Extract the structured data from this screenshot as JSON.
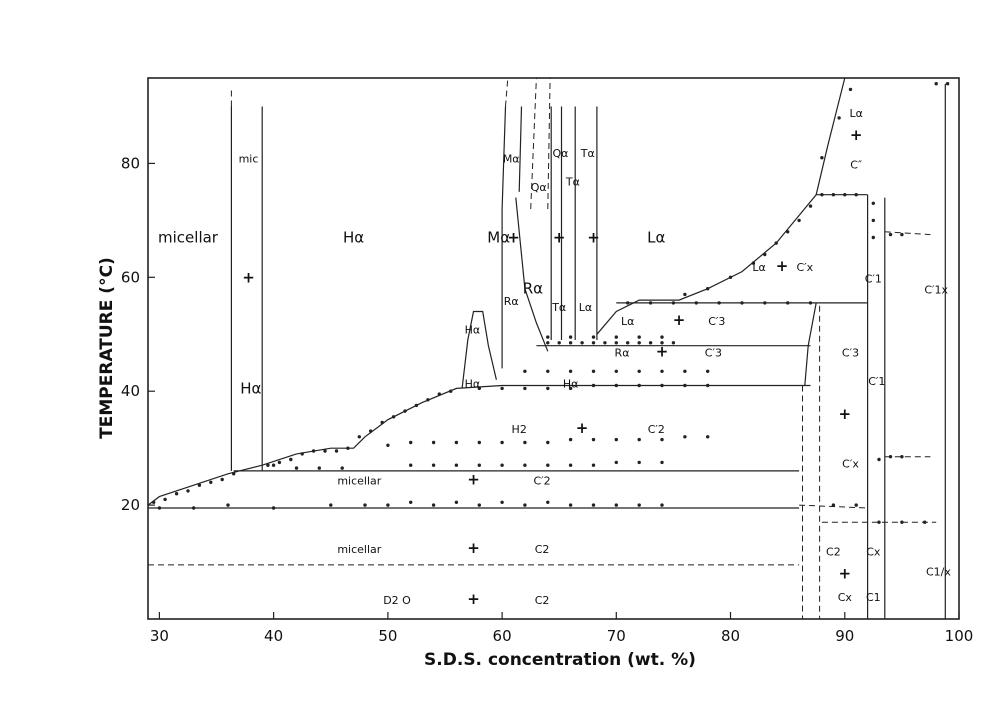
{
  "chart_data": {
    "type": "scatter",
    "title": "",
    "xlabel": "S.D.S. concentration  (wt. %)",
    "ylabel": "TEMPERATURE (°C)",
    "xlim": [
      29,
      100
    ],
    "ylim": [
      0,
      95
    ],
    "x_ticks": [
      "30",
      "40",
      "50",
      "60",
      "70",
      "80",
      "90",
      "100"
    ],
    "y_ticks": [
      "20",
      "40",
      "60",
      "80"
    ],
    "grid": false,
    "legend": "none",
    "colors": {
      "ink": "#222222",
      "background": "#ffffff"
    },
    "region_labels": [
      {
        "text": "micellar",
        "x": 32.5,
        "y": 67,
        "size": "large"
      },
      {
        "text": "mic",
        "x": 37.8,
        "y": 81,
        "size": "small"
      },
      {
        "text": "Hα",
        "x": 38.0,
        "y": 40.5,
        "size": "large"
      },
      {
        "text": "Hα",
        "x": 47.0,
        "y": 67,
        "size": "large"
      },
      {
        "text": "Mα",
        "x": 59.7,
        "y": 67,
        "size": "large"
      },
      {
        "text": "Mα",
        "x": 60.8,
        "y": 81,
        "size": "small"
      },
      {
        "text": "Rα",
        "x": 62.7,
        "y": 58,
        "size": "large"
      },
      {
        "text": "Rα",
        "x": 60.8,
        "y": 56,
        "size": "small"
      },
      {
        "text": "Qα",
        "x": 63.2,
        "y": 76,
        "size": "small"
      },
      {
        "text": "Qα",
        "x": 65.1,
        "y": 82,
        "size": "small"
      },
      {
        "text": "Tα",
        "x": 67.5,
        "y": 82,
        "size": "small"
      },
      {
        "text": "Tα",
        "x": 66.2,
        "y": 77,
        "size": "small"
      },
      {
        "text": "Tα",
        "x": 65.0,
        "y": 55,
        "size": "small"
      },
      {
        "text": "Lα",
        "x": 67.3,
        "y": 55,
        "size": "small"
      },
      {
        "text": "Lα",
        "x": 73.5,
        "y": 67,
        "size": "large"
      },
      {
        "text": "Lα",
        "x": 91.0,
        "y": 89,
        "size": "small"
      },
      {
        "text": "C″",
        "x": 91.0,
        "y": 80,
        "size": "small"
      },
      {
        "text": "Lα",
        "x": 82.5,
        "y": 62,
        "size": "small"
      },
      {
        "text": "C′x",
        "x": 86.5,
        "y": 62,
        "size": "small"
      },
      {
        "text": "Lα",
        "x": 71.0,
        "y": 52.5,
        "size": "small"
      },
      {
        "text": "C′3",
        "x": 78.8,
        "y": 52.5,
        "size": "small"
      },
      {
        "text": "Hα",
        "x": 57.4,
        "y": 51,
        "size": "small"
      },
      {
        "text": "Hα",
        "x": 57.4,
        "y": 41.5,
        "size": "small"
      },
      {
        "text": "Rα",
        "x": 70.5,
        "y": 47,
        "size": "small"
      },
      {
        "text": "C′3",
        "x": 78.5,
        "y": 47,
        "size": "small"
      },
      {
        "text": "Hα",
        "x": 66.0,
        "y": 41.5,
        "size": "small"
      },
      {
        "text": "H2",
        "x": 61.5,
        "y": 33.5,
        "size": "small"
      },
      {
        "text": "C′2",
        "x": 73.5,
        "y": 33.5,
        "size": "small"
      },
      {
        "text": "micellar",
        "x": 47.5,
        "y": 24.5,
        "size": "small"
      },
      {
        "text": "C′2",
        "x": 63.5,
        "y": 24.5,
        "size": "small"
      },
      {
        "text": "micellar",
        "x": 47.5,
        "y": 12.5,
        "size": "small"
      },
      {
        "text": "C2",
        "x": 63.5,
        "y": 12.5,
        "size": "small"
      },
      {
        "text": "D2 O",
        "x": 50.8,
        "y": 3.5,
        "size": "small"
      },
      {
        "text": "C2",
        "x": 63.5,
        "y": 3.5,
        "size": "small"
      },
      {
        "text": "C′3",
        "x": 90.5,
        "y": 47,
        "size": "small"
      },
      {
        "text": "C′x",
        "x": 90.5,
        "y": 27.5,
        "size": "small"
      },
      {
        "text": "C′1",
        "x": 92.8,
        "y": 42,
        "size": "small"
      },
      {
        "text": "C′1",
        "x": 92.5,
        "y": 60,
        "size": "small"
      },
      {
        "text": "C′1x",
        "x": 98.0,
        "y": 58,
        "size": "small"
      },
      {
        "text": "C2",
        "x": 89.0,
        "y": 12,
        "size": "small"
      },
      {
        "text": "Cx",
        "x": 90.0,
        "y": 4,
        "size": "small"
      },
      {
        "text": "C1",
        "x": 92.5,
        "y": 4,
        "size": "small"
      },
      {
        "text": "Cx",
        "x": 92.5,
        "y": 12,
        "size": "small"
      },
      {
        "text": "C1/x",
        "x": 98.2,
        "y": 8.5,
        "size": "small"
      }
    ],
    "plus_marks": [
      {
        "x": 37.8,
        "y": 60
      },
      {
        "x": 61.0,
        "y": 67
      },
      {
        "x": 65.0,
        "y": 67
      },
      {
        "x": 68.0,
        "y": 67
      },
      {
        "x": 91.0,
        "y": 85
      },
      {
        "x": 84.5,
        "y": 62
      },
      {
        "x": 75.5,
        "y": 52.5
      },
      {
        "x": 74.0,
        "y": 47
      },
      {
        "x": 67.0,
        "y": 33.5
      },
      {
        "x": 57.5,
        "y": 24.5
      },
      {
        "x": 57.5,
        "y": 12.5
      },
      {
        "x": 57.5,
        "y": 3.5
      },
      {
        "x": 90.0,
        "y": 36
      },
      {
        "x": 90.0,
        "y": 8
      }
    ],
    "solid_boundaries": [
      {
        "name": "micellar-Hα boundary",
        "points": [
          [
            29,
            20
          ],
          [
            30,
            21.5
          ],
          [
            33,
            23.5
          ],
          [
            36,
            25.5
          ],
          [
            39,
            27
          ],
          [
            42,
            29
          ],
          [
            45,
            30
          ],
          [
            47,
            30
          ],
          [
            48,
            32
          ],
          [
            50,
            35
          ],
          [
            53,
            38
          ],
          [
            56,
            40.5
          ],
          [
            60,
            41
          ],
          [
            87,
            41
          ]
        ]
      },
      {
        "name": "mic left",
        "points": [
          [
            36.3,
            26
          ],
          [
            36.3,
            90
          ]
        ]
      },
      {
        "name": "mic right",
        "points": [
          [
            39.0,
            26
          ],
          [
            39.0,
            90
          ]
        ]
      },
      {
        "name": "Hα-Mα bump",
        "points": [
          [
            56.5,
            40.5
          ],
          [
            57.0,
            49
          ],
          [
            57.5,
            54
          ],
          [
            58.3,
            54
          ],
          [
            58.8,
            48
          ],
          [
            59.5,
            42
          ]
        ]
      },
      {
        "name": "Mα left",
        "points": [
          [
            60.0,
            44
          ],
          [
            60.0,
            72
          ],
          [
            60.3,
            90
          ]
        ]
      },
      {
        "name": "Mα right",
        "points": [
          [
            61.5,
            75
          ],
          [
            61.7,
            90
          ]
        ]
      },
      {
        "name": "Rα boundary",
        "points": [
          [
            61.2,
            74
          ],
          [
            62.0,
            58
          ],
          [
            63.0,
            52
          ],
          [
            64.0,
            47
          ]
        ]
      },
      {
        "name": "Qα left",
        "points": [
          [
            64.3,
            49
          ],
          [
            64.3,
            90
          ]
        ]
      },
      {
        "name": "Qα right",
        "points": [
          [
            65.2,
            49
          ],
          [
            65.2,
            90
          ]
        ]
      },
      {
        "name": "Tα left",
        "points": [
          [
            66.4,
            49
          ],
          [
            66.4,
            90
          ]
        ]
      },
      {
        "name": "Tα right",
        "points": [
          [
            68.3,
            49
          ],
          [
            68.3,
            90
          ]
        ]
      },
      {
        "name": "Lα-Rα lower",
        "points": [
          [
            63.0,
            48
          ],
          [
            87,
            48
          ]
        ]
      },
      {
        "name": "Lα-C′3 line",
        "points": [
          [
            68.3,
            50
          ],
          [
            70.0,
            54
          ],
          [
            72.0,
            56
          ],
          [
            75.5,
            56
          ],
          [
            78.0,
            58
          ],
          [
            81.0,
            61
          ],
          [
            84.0,
            66
          ],
          [
            87.5,
            74.5
          ],
          [
            92,
            74.5
          ]
        ]
      },
      {
        "name": "Lα 55 line",
        "points": [
          [
            70.0,
            55.5
          ],
          [
            92,
            55.5
          ]
        ]
      },
      {
        "name": "upper Lα",
        "points": [
          [
            87.5,
            74.5
          ],
          [
            88.5,
            83
          ],
          [
            90.0,
            95
          ]
        ]
      },
      {
        "name": "C′x-C′3 right",
        "points": [
          [
            87.5,
            55.5
          ],
          [
            86.8,
            48
          ],
          [
            86.5,
            41
          ]
        ]
      },
      {
        "name": "low Hα line",
        "points": [
          [
            36.5,
            26
          ],
          [
            48,
            26
          ],
          [
            86,
            26
          ]
        ]
      },
      {
        "name": "20 line",
        "points": [
          [
            29,
            19.5
          ],
          [
            86,
            19.5
          ]
        ]
      },
      {
        "name": "C2-C1 divider",
        "points": [
          [
            92.0,
            74.5
          ],
          [
            92.0,
            0
          ]
        ]
      },
      {
        "name": "C1 right",
        "points": [
          [
            93.5,
            74
          ],
          [
            93.5,
            0
          ]
        ]
      },
      {
        "name": "upper right",
        "points": [
          [
            98.8,
            94
          ],
          [
            98.8,
            0
          ]
        ]
      }
    ],
    "dashed_boundaries": [
      {
        "name": "mic left dash",
        "points": [
          [
            36.3,
            90
          ],
          [
            36.3,
            93
          ]
        ]
      },
      {
        "name": "Mα dash",
        "points": [
          [
            60.3,
            90
          ],
          [
            60.5,
            95
          ]
        ]
      },
      {
        "name": "Rα dash",
        "points": [
          [
            62.5,
            72
          ],
          [
            63.0,
            95
          ]
        ]
      },
      {
        "name": "Qα dash",
        "points": [
          [
            64.0,
            72
          ],
          [
            64.2,
            95
          ]
        ]
      },
      {
        "name": "D2O line",
        "points": [
          [
            29,
            9.5
          ],
          [
            86,
            9.5
          ]
        ]
      },
      {
        "name": "C′x-C2 bottom",
        "points": [
          [
            86.3,
            41
          ],
          [
            86.3,
            0
          ]
        ]
      },
      {
        "name": "C2 left",
        "points": [
          [
            87.8,
            55
          ],
          [
            87.8,
            0
          ]
        ]
      },
      {
        "name": "C′1x line",
        "points": [
          [
            93.5,
            68
          ],
          [
            97.5,
            67.5
          ]
        ]
      },
      {
        "name": "C′x 28",
        "points": [
          [
            93.5,
            28.5
          ],
          [
            97.5,
            28.5
          ]
        ]
      },
      {
        "name": "C′x 20",
        "points": [
          [
            86,
            20
          ],
          [
            92,
            19.5
          ]
        ]
      },
      {
        "name": "C1 17",
        "points": [
          [
            88,
            17
          ],
          [
            98,
            17
          ]
        ]
      }
    ],
    "data_points": [
      [
        29.5,
        20.5
      ],
      [
        30.5,
        21
      ],
      [
        31.5,
        22
      ],
      [
        32.5,
        22.5
      ],
      [
        33.5,
        23.5
      ],
      [
        34.5,
        24
      ],
      [
        35.5,
        24.5
      ],
      [
        36.5,
        25.5
      ],
      [
        39.5,
        27
      ],
      [
        40.5,
        27.5
      ],
      [
        41.5,
        28
      ],
      [
        42.5,
        29
      ],
      [
        43.5,
        29.5
      ],
      [
        44.5,
        29.5
      ],
      [
        45.5,
        29.5
      ],
      [
        46.5,
        30
      ],
      [
        47.5,
        32
      ],
      [
        48.5,
        33
      ],
      [
        49.5,
        34.5
      ],
      [
        50.5,
        35.5
      ],
      [
        51.5,
        36.5
      ],
      [
        52.5,
        37.5
      ],
      [
        53.5,
        38.5
      ],
      [
        54.5,
        39.5
      ],
      [
        55.5,
        40
      ],
      [
        58,
        40.5
      ],
      [
        60,
        40.5
      ],
      [
        62,
        40.5
      ],
      [
        64,
        40.5
      ],
      [
        66,
        40.5
      ],
      [
        68,
        41
      ],
      [
        70,
        41
      ],
      [
        72,
        41
      ],
      [
        74,
        41
      ],
      [
        76,
        41
      ],
      [
        78,
        41
      ],
      [
        62,
        43.5
      ],
      [
        64,
        43.5
      ],
      [
        66,
        43.5
      ],
      [
        68,
        43.5
      ],
      [
        70,
        43.5
      ],
      [
        72,
        43.5
      ],
      [
        74,
        43.5
      ],
      [
        76,
        43.5
      ],
      [
        78,
        43.5
      ],
      [
        64,
        48.5
      ],
      [
        65,
        48.5
      ],
      [
        66,
        48.5
      ],
      [
        67,
        48.5
      ],
      [
        68,
        48.5
      ],
      [
        69,
        48.5
      ],
      [
        70,
        48.5
      ],
      [
        71,
        48.5
      ],
      [
        72,
        48.5
      ],
      [
        73,
        48.5
      ],
      [
        74,
        48.5
      ],
      [
        75,
        48.5
      ],
      [
        64,
        49.5
      ],
      [
        66,
        49.5
      ],
      [
        68,
        49.5
      ],
      [
        70,
        49.5
      ],
      [
        72,
        49.5
      ],
      [
        74,
        49.5
      ],
      [
        71,
        55.5
      ],
      [
        73,
        55.5
      ],
      [
        75,
        55.5
      ],
      [
        77,
        55.5
      ],
      [
        79,
        55.5
      ],
      [
        81,
        55.5
      ],
      [
        83,
        55.5
      ],
      [
        85,
        55.5
      ],
      [
        87,
        55.5
      ],
      [
        76,
        57
      ],
      [
        78,
        58
      ],
      [
        80,
        60
      ],
      [
        82,
        62.5
      ],
      [
        83,
        64
      ],
      [
        84,
        66
      ],
      [
        85,
        68
      ],
      [
        86,
        70
      ],
      [
        87,
        72.5
      ],
      [
        88,
        74.5
      ],
      [
        89,
        74.5
      ],
      [
        90,
        74.5
      ],
      [
        91,
        74.5
      ],
      [
        88,
        81
      ],
      [
        89.5,
        88
      ],
      [
        90.5,
        93
      ],
      [
        50,
        30.5
      ],
      [
        52,
        31
      ],
      [
        54,
        31
      ],
      [
        56,
        31
      ],
      [
        58,
        31
      ],
      [
        60,
        31
      ],
      [
        62,
        31
      ],
      [
        64,
        31
      ],
      [
        66,
        31.5
      ],
      [
        68,
        31.5
      ],
      [
        70,
        31.5
      ],
      [
        72,
        31.5
      ],
      [
        74,
        31.5
      ],
      [
        76,
        32
      ],
      [
        78,
        32
      ],
      [
        40,
        27
      ],
      [
        42,
        26.5
      ],
      [
        44,
        26.5
      ],
      [
        46,
        26.5
      ],
      [
        52,
        27
      ],
      [
        54,
        27
      ],
      [
        56,
        27
      ],
      [
        58,
        27
      ],
      [
        60,
        27
      ],
      [
        62,
        27
      ],
      [
        64,
        27
      ],
      [
        66,
        27
      ],
      [
        68,
        27
      ],
      [
        70,
        27.5
      ],
      [
        72,
        27.5
      ],
      [
        74,
        27.5
      ],
      [
        30,
        19.5
      ],
      [
        33,
        19.5
      ],
      [
        36,
        20
      ],
      [
        40,
        19.5
      ],
      [
        45,
        20
      ],
      [
        48,
        20
      ],
      [
        50,
        20
      ],
      [
        52,
        20.5
      ],
      [
        54,
        20
      ],
      [
        56,
        20.5
      ],
      [
        58,
        20
      ],
      [
        60,
        20.5
      ],
      [
        62,
        20
      ],
      [
        64,
        20.5
      ],
      [
        66,
        20
      ],
      [
        68,
        20
      ],
      [
        70,
        20
      ],
      [
        72,
        20
      ],
      [
        74,
        20
      ],
      [
        92.5,
        73
      ],
      [
        92.5,
        70
      ],
      [
        92.5,
        67
      ],
      [
        94,
        67.5
      ],
      [
        95,
        67.5
      ],
      [
        93,
        28
      ],
      [
        94,
        28.5
      ],
      [
        95,
        28.5
      ],
      [
        93,
        17
      ],
      [
        95,
        17
      ],
      [
        97,
        17
      ],
      [
        98,
        94
      ],
      [
        99,
        94
      ],
      [
        89,
        20
      ],
      [
        91,
        20
      ]
    ]
  }
}
